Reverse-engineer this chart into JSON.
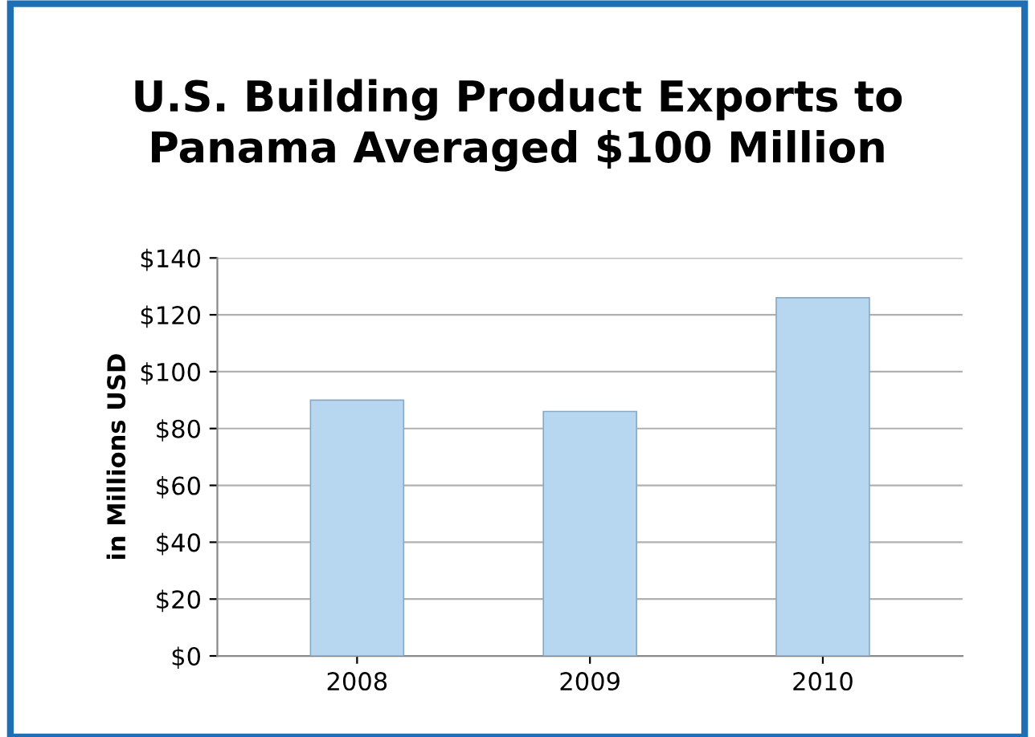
{
  "chart_data": {
    "type": "bar",
    "title": "U.S. Building Product Exports to\nPanama Averaged $100 Million",
    "ylabel": "in Millions USD",
    "categories": [
      "2008",
      "2009",
      "2010"
    ],
    "values": [
      90,
      86,
      126
    ],
    "color": "#b7d7f1",
    "ylim": [
      0,
      140
    ],
    "yticks": [
      {
        "value": 0,
        "label": "$0"
      },
      {
        "value": 20,
        "label": "$20"
      },
      {
        "value": 40,
        "label": "$40"
      },
      {
        "value": 60,
        "label": "$60"
      },
      {
        "value": 80,
        "label": "$80"
      },
      {
        "value": 100,
        "label": "$100"
      },
      {
        "value": 120,
        "label": "$120"
      },
      {
        "value": 140,
        "label": "$140"
      }
    ],
    "grid": "y"
  }
}
